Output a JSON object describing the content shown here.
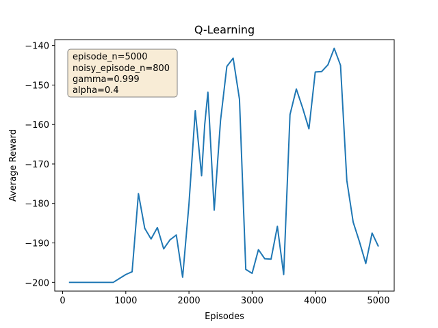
{
  "chart_data": {
    "type": "line",
    "title": "Q-Learning",
    "xlabel": "Episodes",
    "ylabel": "Average Reward",
    "xlim": [
      -125,
      5250
    ],
    "ylim": [
      -202.2,
      -138.5
    ],
    "xticks": [
      0,
      1000,
      2000,
      3000,
      4000,
      5000
    ],
    "yticks": [
      -200,
      -190,
      -180,
      -170,
      -160,
      -150,
      -140
    ],
    "xtick_labels": [
      "0",
      "1000",
      "2000",
      "3000",
      "4000",
      "5000"
    ],
    "ytick_labels": [
      "−200",
      "−190",
      "−180",
      "−170",
      "−160",
      "−150",
      "−140"
    ],
    "grid": false,
    "line_color": "#1f77b4",
    "annotation": {
      "lines": [
        "episode_n=5000",
        "noisy_episode_n=800",
        "gamma=0.999",
        "alpha=0.4"
      ],
      "placement": "top-left",
      "facecolor": "#f8ecd6",
      "edgecolor": "#808080"
    },
    "series": [
      {
        "x": [
          100,
          200,
          300,
          400,
          500,
          600,
          700,
          800,
          900,
          1000,
          1100,
          1200,
          1300,
          1400,
          1500,
          1600,
          1700,
          1800,
          1900,
          2000,
          2100,
          2200,
          2250,
          2300,
          2400,
          2500,
          2600,
          2700,
          2800,
          2900,
          3000,
          3100,
          3200,
          3300,
          3400,
          3500,
          3600,
          3700,
          3800,
          3900,
          4000,
          4100,
          4200,
          4300,
          4400,
          4500,
          4600,
          4700,
          4800,
          4900,
          5000
        ],
        "y": [
          -200,
          -200,
          -200,
          -200,
          -200,
          -200,
          -200,
          -200,
          -199,
          -198,
          -197.3,
          -177.5,
          -186.3,
          -189,
          -186.1,
          -191.5,
          -189.2,
          -188,
          -198.7,
          -180.2,
          -156.5,
          -173,
          -160,
          -151.8,
          -181.7,
          -159,
          -145.3,
          -143.2,
          -153.6,
          -196.7,
          -197.7,
          -191.7,
          -194,
          -194.1,
          -185.8,
          -198,
          -157.5,
          -151,
          -155.8,
          -161.1,
          -146.7,
          -146.6,
          -144.9,
          -140.7,
          -145,
          -174.2,
          -184.7,
          -189.7,
          -195.2,
          -187.5,
          -190.9
        ]
      }
    ]
  }
}
